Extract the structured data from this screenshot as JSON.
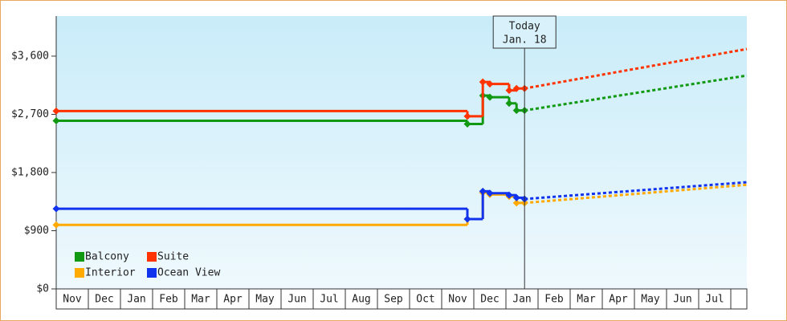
{
  "chart_data": {
    "type": "step-line",
    "categories": [
      "Nov",
      "Dec",
      "Jan",
      "Feb",
      "Mar",
      "Apr",
      "May",
      "Jun",
      "Jul",
      "Aug",
      "Sep",
      "Oct",
      "Nov",
      "Dec",
      "Jan",
      "Feb",
      "Mar",
      "Apr",
      "May",
      "Jun",
      "Jul"
    ],
    "x": [
      0,
      12.8,
      13.28,
      13.5,
      14.1,
      14.33,
      14.58
    ],
    "xlim": [
      0,
      21.5
    ],
    "ylim": [
      0,
      4220
    ],
    "yticks": [
      {
        "value": 0,
        "label": "$0"
      },
      {
        "value": 900,
        "label": "$900"
      },
      {
        "value": 1800,
        "label": "$1,800"
      },
      {
        "value": 2700,
        "label": "$2,700"
      },
      {
        "value": 3600,
        "label": "$3,600"
      }
    ],
    "forecast_x": [
      14.58,
      21.5
    ],
    "today_x": 14.58,
    "today_label": [
      "Today",
      "Jan. 18"
    ],
    "legend": "lower left",
    "series": [
      {
        "name": "Balcony",
        "color": "#119911",
        "values": [
          2600,
          2550,
          2990,
          2965,
          2870,
          2760,
          2760
        ],
        "forecast": [
          2760,
          3300
        ]
      },
      {
        "name": "Suite",
        "color": "#ff3300",
        "values": [
          2750,
          2670,
          3200,
          3170,
          3070,
          3100,
          3100
        ],
        "forecast": [
          3100,
          3710
        ]
      },
      {
        "name": "Interior",
        "color": "#ffaa00",
        "values": [
          990,
          1080,
          1490,
          1460,
          1430,
          1330,
          1330
        ],
        "forecast": [
          1330,
          1610
        ]
      },
      {
        "name": "Ocean View",
        "color": "#1133ee",
        "values": [
          1240,
          1080,
          1510,
          1480,
          1450,
          1410,
          1390
        ],
        "forecast": [
          1390,
          1650
        ]
      }
    ]
  }
}
